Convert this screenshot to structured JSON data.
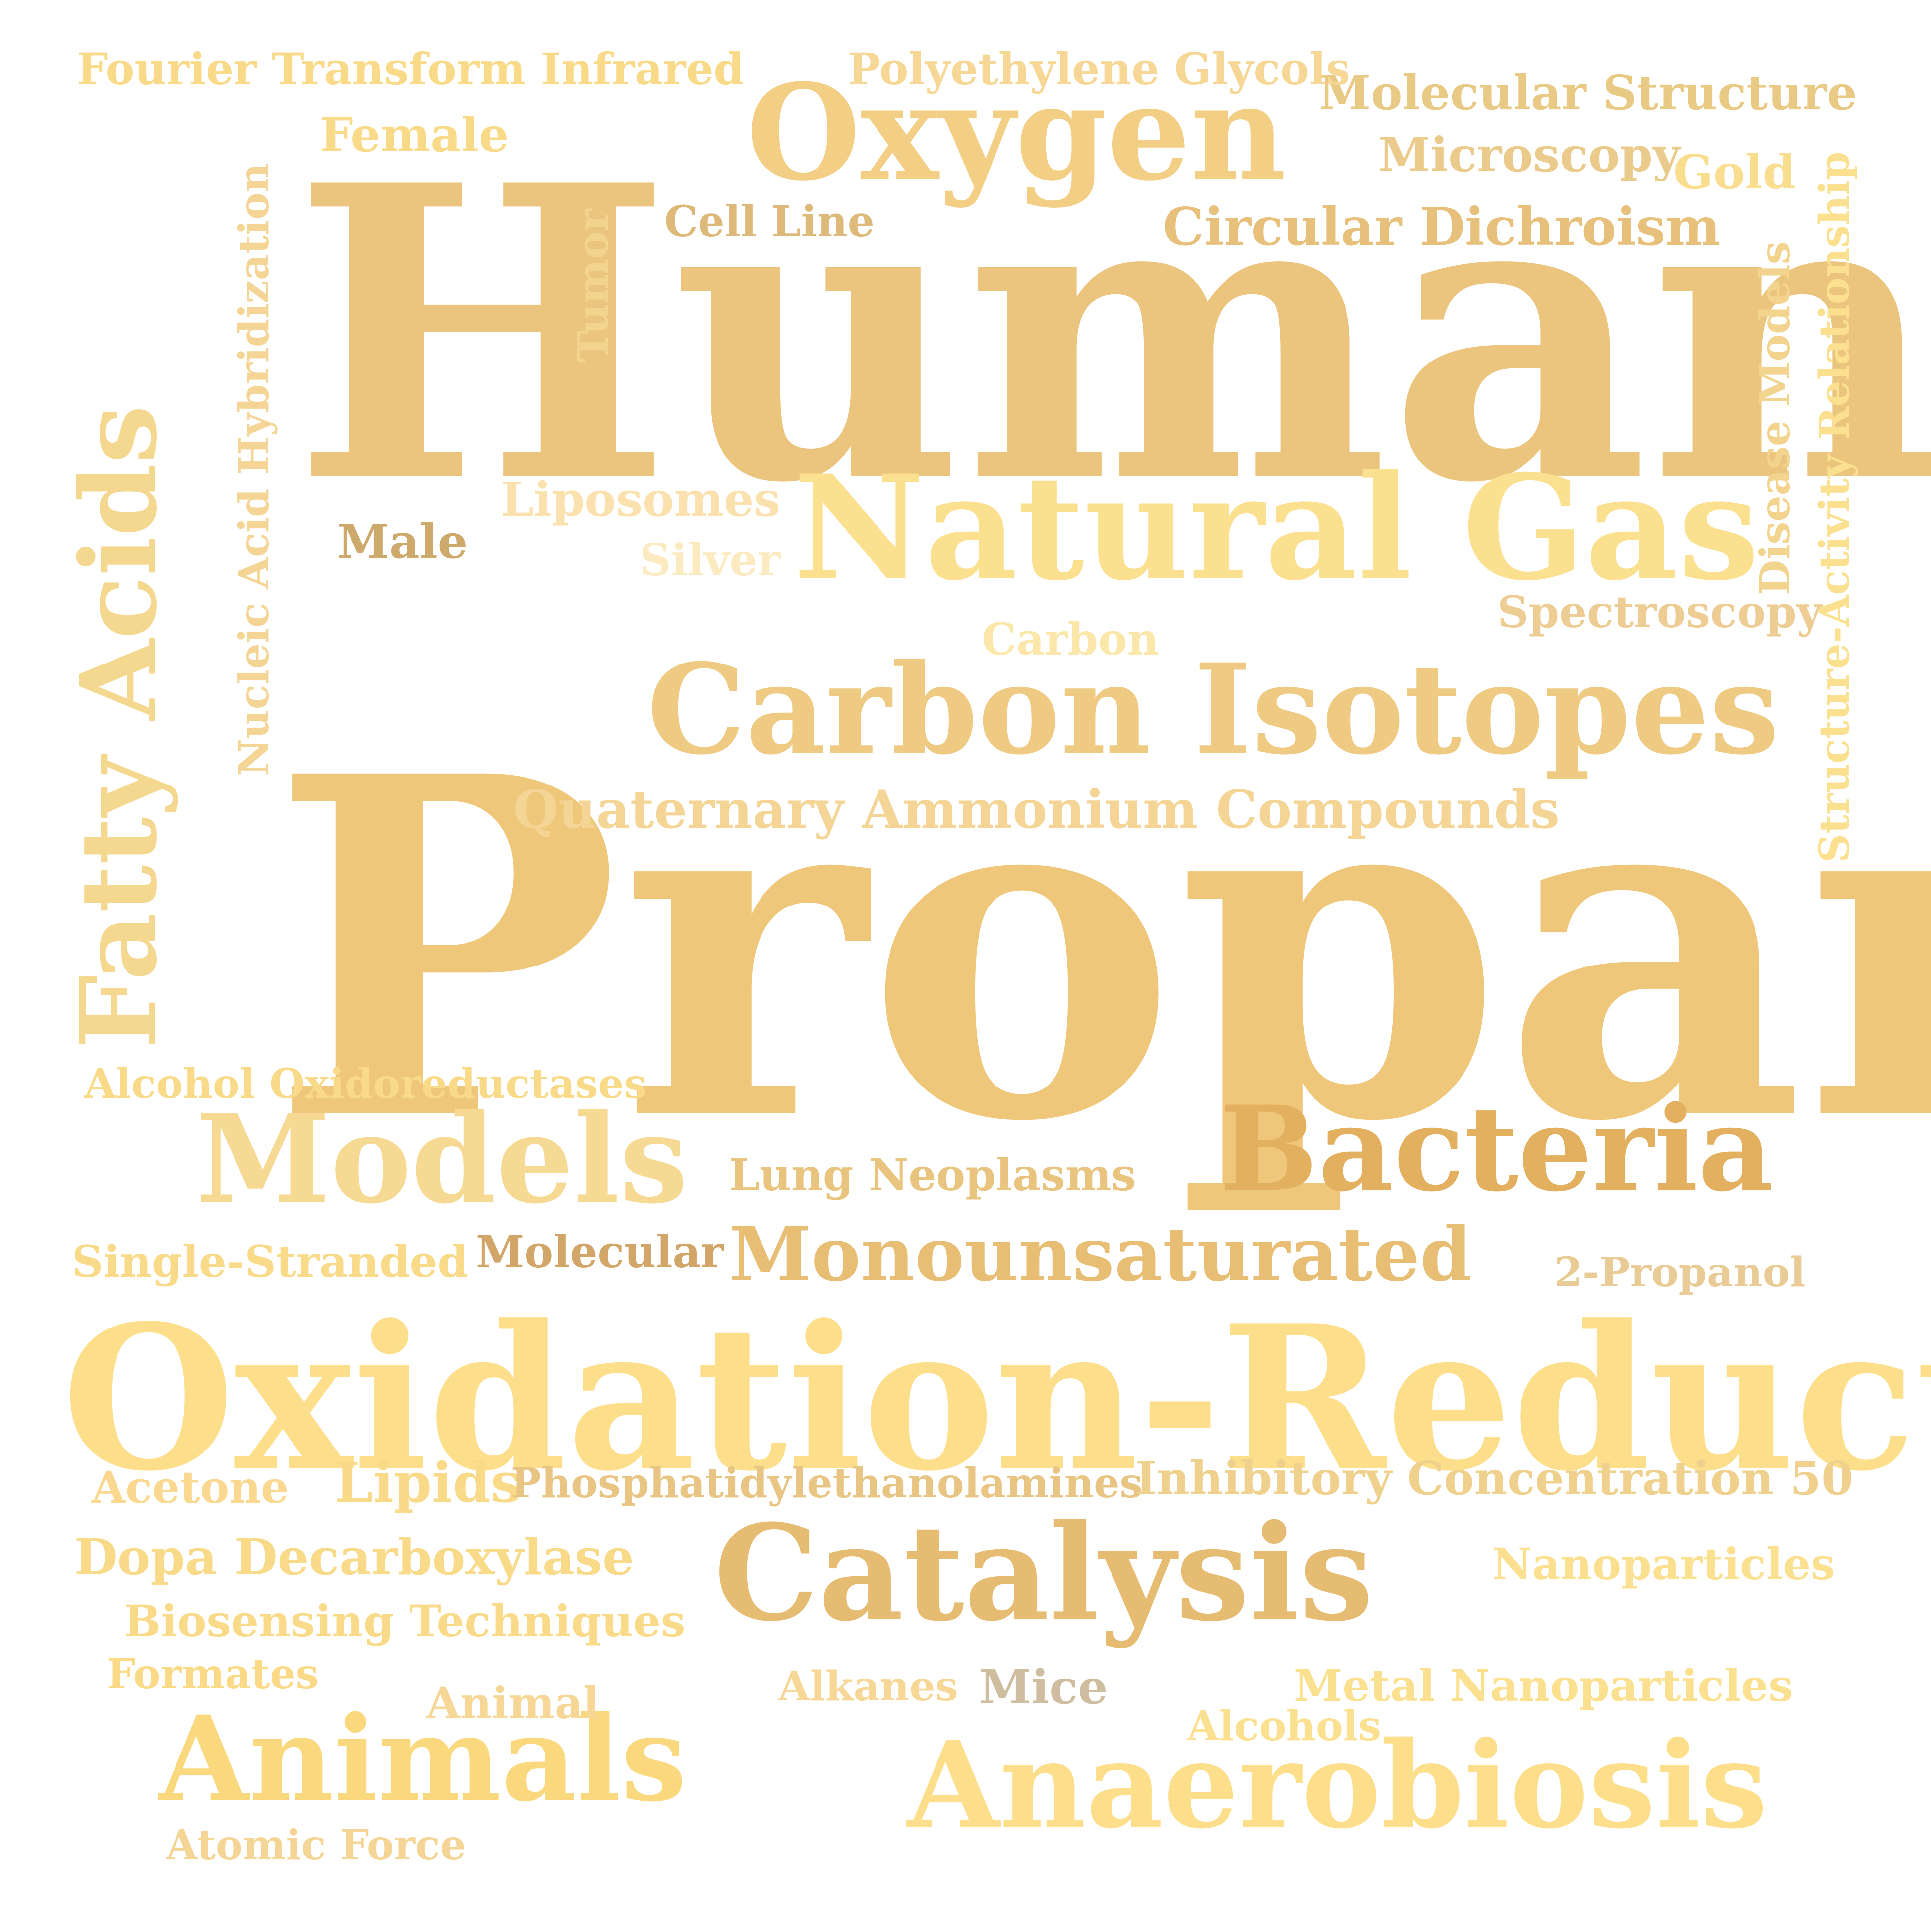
{
  "words": [
    {
      "text": "Humans",
      "color": "#EBC57E",
      "orientation": "horizontal"
    },
    {
      "text": "Propane",
      "color": "#EFC77A",
      "orientation": "horizontal"
    },
    {
      "text": "Oxidation-Reduction",
      "color": "#FDDF8B",
      "orientation": "horizontal"
    },
    {
      "text": "Fatty Acids",
      "color": "#F5D88F",
      "orientation": "vertical"
    },
    {
      "text": "Natural Gas",
      "color": "#FBE08F",
      "orientation": "horizontal"
    },
    {
      "text": "Carbon Isotopes",
      "color": "#EECA82",
      "orientation": "horizontal"
    },
    {
      "text": "Oxygen",
      "color": "#F2CF84",
      "orientation": "horizontal"
    },
    {
      "text": "Bacteria",
      "color": "#E3B060",
      "orientation": "horizontal"
    },
    {
      "text": "Catalysis",
      "color": "#E6BC72",
      "orientation": "horizontal"
    },
    {
      "text": "Models",
      "color": "#F6D993",
      "orientation": "horizontal"
    },
    {
      "text": "Animals",
      "color": "#FAD87E",
      "orientation": "horizontal"
    },
    {
      "text": "Anaerobiosis",
      "color": "#FDDF8B",
      "orientation": "horizontal"
    },
    {
      "text": "Monounsaturated",
      "color": "#E7BE74",
      "orientation": "horizontal"
    },
    {
      "text": "Quaternary Ammonium Compounds",
      "color": "#F5D595",
      "orientation": "horizontal"
    },
    {
      "text": "Circular Dichroism",
      "color": "#E7C07B",
      "orientation": "horizontal"
    },
    {
      "text": "Molecular Structure",
      "color": "#E9CA85",
      "orientation": "horizontal"
    },
    {
      "text": "Fourier Transform Infrared",
      "color": "#F9DA88",
      "orientation": "horizontal"
    },
    {
      "text": "Polyethylene Glycols",
      "color": "#F6D795",
      "orientation": "horizontal"
    },
    {
      "text": "Female",
      "color": "#F9DA88",
      "orientation": "horizontal"
    },
    {
      "text": "Microscopy",
      "color": "#EBCB8B",
      "orientation": "horizontal"
    },
    {
      "text": "Gold",
      "color": "#F9DE8F",
      "orientation": "horizontal"
    },
    {
      "text": "Cell Line",
      "color": "#DDBA7A",
      "orientation": "horizontal"
    },
    {
      "text": "Tumor",
      "color": "#F2D48E",
      "orientation": "vertical"
    },
    {
      "text": "Nucleic Acid Hybridization",
      "color": "#F5D595",
      "orientation": "vertical"
    },
    {
      "text": "Disease Models",
      "color": "#F2D48E",
      "orientation": "vertical"
    },
    {
      "text": "Structure-Activity Relationship",
      "color": "#FBE08F",
      "orientation": "vertical"
    },
    {
      "text": "Liposomes",
      "color": "#FBE1AD",
      "orientation": "horizontal"
    },
    {
      "text": "Male",
      "color": "#CDA96C",
      "orientation": "horizontal"
    },
    {
      "text": "Silver",
      "color": "#FCEAC1",
      "orientation": "horizontal"
    },
    {
      "text": "Spectroscopy",
      "color": "#EDCD94",
      "orientation": "horizontal"
    },
    {
      "text": "Carbon",
      "color": "#FCE7AA",
      "orientation": "horizontal"
    },
    {
      "text": "Alcohol Oxidoreductases",
      "color": "#F9DA88",
      "orientation": "horizontal"
    },
    {
      "text": "Lung Neoplasms",
      "color": "#E9C47E",
      "orientation": "horizontal"
    },
    {
      "text": "Single-Stranded",
      "color": "#F9DA88",
      "orientation": "horizontal"
    },
    {
      "text": "Molecular",
      "color": "#D1A668",
      "orientation": "horizontal"
    },
    {
      "text": "2-Propanol",
      "color": "#E9CB96",
      "orientation": "horizontal"
    },
    {
      "text": "Acetone",
      "color": "#FAD88F",
      "orientation": "horizontal"
    },
    {
      "text": "Lipids",
      "color": "#F9DA88",
      "orientation": "horizontal"
    },
    {
      "text": "Phosphatidylethanolamines",
      "color": "#E9C583",
      "orientation": "horizontal"
    },
    {
      "text": "Inhibitory Concentration 50",
      "color": "#EFD08C",
      "orientation": "horizontal"
    },
    {
      "text": "Dopa Decarboxylase",
      "color": "#F9DA88",
      "orientation": "horizontal"
    },
    {
      "text": "Nanoparticles",
      "color": "#FBE08F",
      "orientation": "horizontal"
    },
    {
      "text": "Biosensing Techniques",
      "color": "#F9DA88",
      "orientation": "horizontal"
    },
    {
      "text": "Formates",
      "color": "#FADA86",
      "orientation": "horizontal"
    },
    {
      "text": "Alkanes",
      "color": "#F6D795",
      "orientation": "horizontal"
    },
    {
      "text": "Mice",
      "color": "#CFBDA0",
      "orientation": "horizontal"
    },
    {
      "text": "Metal Nanoparticles",
      "color": "#FBE08F",
      "orientation": "horizontal"
    },
    {
      "text": "Animal",
      "color": "#F6D795",
      "orientation": "horizontal"
    },
    {
      "text": "Alcohols",
      "color": "#FBE08F",
      "orientation": "horizontal"
    },
    {
      "text": "Atomic Force",
      "color": "#F5D595",
      "orientation": "horizontal"
    }
  ]
}
